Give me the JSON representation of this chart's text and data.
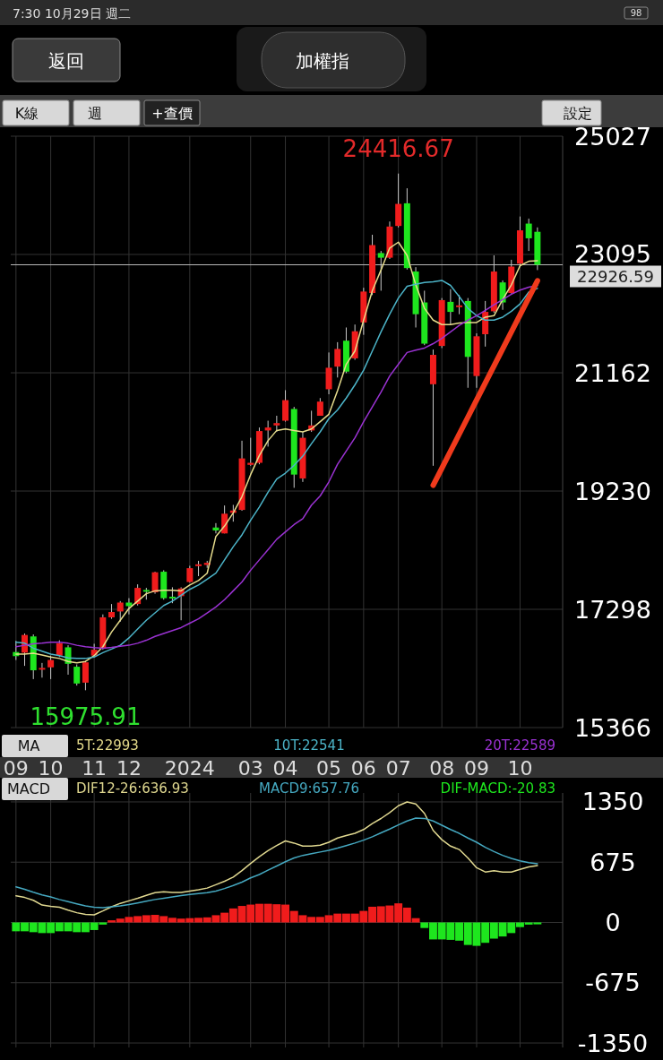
{
  "chart_data": [
    {
      "type": "other",
      "title": "加權指",
      "annotations": [
        "7:30 10月29日 週二",
        "返回",
        "K線",
        "週",
        "+查價",
        "設定",
        "98"
      ]
    },
    {
      "type": "candlestick",
      "categories": [
        "09",
        null,
        null,
        null,
        "10",
        null,
        null,
        null,
        null,
        "11",
        null,
        null,
        null,
        "12",
        null,
        null,
        null,
        null,
        null,
        null,
        "2024",
        null,
        null,
        null,
        null,
        null,
        null,
        "03",
        null,
        null,
        null,
        "04",
        null,
        null,
        null,
        null,
        "05",
        null,
        null,
        null,
        "06",
        null,
        null,
        null,
        "07",
        null,
        null,
        null,
        null,
        "08",
        null,
        null,
        null,
        "09",
        null,
        null,
        null,
        null,
        "10",
        null,
        null
      ],
      "ohlc": [
        [
          16600,
          16783,
          16470,
          16533
        ],
        [
          16590,
          16903,
          16374,
          16879
        ],
        [
          16855,
          16888,
          16158,
          16302
        ],
        [
          16312,
          16422,
          16182,
          16340
        ],
        [
          16350,
          16542,
          16158,
          16470
        ],
        [
          16542,
          16792,
          16518,
          16744
        ],
        [
          16677,
          16711,
          16230,
          16408
        ],
        [
          16360,
          16398,
          16052,
          16086
        ],
        [
          16100,
          16456,
          15975.91,
          16432
        ],
        [
          16542,
          16735,
          16518,
          16638
        ],
        [
          16662,
          17215,
          16638,
          17167
        ],
        [
          17167,
          17384,
          17143,
          17254
        ],
        [
          17263,
          17432,
          17095,
          17408
        ],
        [
          17408,
          17480,
          17215,
          17350
        ],
        [
          17384,
          17706,
          17360,
          17648
        ],
        [
          17614,
          17648,
          17456,
          17585
        ],
        [
          17576,
          17912,
          17552,
          17903
        ],
        [
          17912,
          17936,
          17456,
          17480
        ],
        [
          17504,
          17658,
          17398,
          17475
        ],
        [
          17513,
          17658,
          17119,
          17638
        ],
        [
          17744,
          18009,
          17735,
          17970
        ],
        [
          18004,
          18090,
          17840,
          18033
        ],
        [
          18023,
          18090,
          17975,
          18057
        ],
        [
          18634,
          18706,
          18538,
          18586
        ],
        [
          18538,
          18994,
          18538,
          18860
        ],
        [
          18874,
          19004,
          18730,
          18912
        ],
        [
          18922,
          20052,
          18908,
          19763
        ],
        [
          19658,
          20100,
          19643,
          19691
        ],
        [
          19691,
          20268,
          19667,
          20210
        ],
        [
          20220,
          20379,
          19956,
          20268
        ],
        [
          20302,
          20460,
          20196,
          20340
        ],
        [
          20379,
          20878,
          20364,
          20715
        ],
        [
          20571,
          20605,
          19283,
          19499
        ],
        [
          19436,
          20196,
          19379,
          20100
        ],
        [
          20220,
          20542,
          20196,
          20302
        ],
        [
          20460,
          20749,
          20460,
          20691
        ],
        [
          20893,
          21494,
          20811,
          21244
        ],
        [
          21263,
          21662,
          21085,
          21551
        ],
        [
          21686,
          21902,
          21157,
          21181
        ],
        [
          21398,
          21950,
          21374,
          21840
        ],
        [
          21984,
          22551,
          21782,
          22489
        ],
        [
          22465,
          23417,
          22431,
          23248
        ],
        [
          23118,
          23152,
          22503,
          23042
        ],
        [
          23042,
          23633,
          23022,
          23551
        ],
        [
          23561,
          24416.67,
          23537,
          23921
        ],
        [
          23931,
          24176,
          22849,
          22873
        ],
        [
          22816,
          22888,
          21902,
          22119
        ],
        [
          22311,
          22503,
          21614,
          21638
        ],
        [
          20975,
          21542,
          19643,
          21455
        ],
        [
          21600,
          22383,
          21566,
          22349
        ],
        [
          22321,
          22527,
          21950,
          22157
        ],
        [
          22234,
          22431,
          22119,
          22263
        ],
        [
          22335,
          22383,
          20917,
          21422
        ],
        [
          21109,
          21806,
          20917,
          21758
        ],
        [
          21792,
          22335,
          21590,
          22157
        ],
        [
          22167,
          23080,
          22143,
          22816
        ],
        [
          22638,
          22671,
          22191,
          22311
        ],
        [
          22465,
          23008,
          22455,
          22897
        ],
        [
          22945,
          23715,
          22888,
          23489
        ],
        [
          23599,
          23681,
          23152,
          23359
        ],
        [
          23465,
          23537,
          22840,
          22926.59
        ]
      ],
      "colors": [
        "#1ee61e",
        "#f01c1c",
        "#1ee61e",
        "#f01c1c",
        "#f01c1c",
        "#f01c1c",
        "#1ee61e",
        "#1ee61e",
        "#f01c1c",
        "#f01c1c",
        "#f01c1c",
        "#f01c1c",
        "#f01c1c",
        "#1ee61e",
        "#f01c1c",
        "#1ee61e",
        "#f01c1c",
        "#1ee61e",
        "#1ee61e",
        "#f01c1c",
        "#f01c1c",
        "#f01c1c",
        "#f01c1c",
        "#1ee61e",
        "#f01c1c",
        "#f01c1c",
        "#f01c1c",
        "#f01c1c",
        "#f01c1c",
        "#f01c1c",
        "#f01c1c",
        "#f01c1c",
        "#1ee61e",
        "#f01c1c",
        "#f01c1c",
        "#f01c1c",
        "#f01c1c",
        "#f01c1c",
        "#1ee61e",
        "#f01c1c",
        "#f01c1c",
        "#f01c1c",
        "#1ee61e",
        "#f01c1c",
        "#f01c1c",
        "#1ee61e",
        "#1ee61e",
        "#1ee61e",
        "#f01c1c",
        "#f01c1c",
        "#1ee61e",
        "#f01c1c",
        "#1ee61e",
        "#f01c1c",
        "#f01c1c",
        "#f01c1c",
        "#1ee61e",
        "#f01c1c",
        "#f01c1c",
        "#1ee61e",
        "#1ee61e"
      ],
      "series": [
        {
          "name": "5T:22993",
          "type": "line",
          "color": "#e6dc8c",
          "values": [
            16567,
            16567,
            16580,
            16552,
            16518,
            16495,
            16446,
            16422,
            16446,
            16542,
            16687,
            16927,
            17119,
            17312,
            17432,
            17552,
            17600,
            17610,
            17610,
            17600,
            17696,
            17768,
            17888,
            18489,
            18658,
            18874,
            19138,
            19499,
            19811,
            20052,
            20220,
            20244,
            20220,
            20196,
            20244,
            20364,
            20484,
            20869,
            21301,
            21518,
            22022,
            22503,
            22840,
            23200,
            23296,
            23080,
            22599,
            22215,
            22022,
            21950,
            21950,
            21974,
            21984,
            21984,
            22071,
            22095,
            22359,
            22599,
            22912,
            22984,
            22993
          ]
        },
        {
          "name": "10T:22541",
          "type": "line",
          "color": "#4cb4c8",
          "values": [
            16759,
            16744,
            16662,
            16614,
            16567,
            16542,
            16504,
            16495,
            16495,
            16518,
            16590,
            16648,
            16711,
            16831,
            16975,
            17119,
            17239,
            17360,
            17432,
            17528,
            17624,
            17696,
            17792,
            17889,
            18105,
            18321,
            18514,
            18754,
            18970,
            19210,
            19427,
            19523,
            19650,
            19800,
            20004,
            20196,
            20412,
            20556,
            20749,
            20965,
            21205,
            21518,
            21830,
            22119,
            22383,
            22575,
            22609,
            22638,
            22648,
            22671,
            22590,
            22407,
            22215,
            22095,
            22022,
            22022,
            22071,
            22167,
            22287,
            22480,
            22541
          ]
        },
        {
          "name": "20T:22589",
          "type": "line",
          "color": "#9a32d2",
          "values": [
            16687,
            16711,
            16735,
            16744,
            16759,
            16759,
            16744,
            16711,
            16687,
            16672,
            16662,
            16677,
            16696,
            16711,
            16744,
            16792,
            16855,
            16903,
            16951,
            16999,
            17071,
            17143,
            17239,
            17336,
            17456,
            17600,
            17744,
            17937,
            18105,
            18273,
            18442,
            18562,
            18682,
            18778,
            19000,
            19150,
            19380,
            19667,
            19883,
            20100,
            20364,
            20604,
            20845,
            21109,
            21301,
            21494,
            21532,
            21566,
            21638,
            21724,
            21830,
            21936,
            22022,
            22095,
            22181,
            22273,
            22359,
            22445,
            22513,
            22561,
            22589
          ]
        },
        {
          "type": "line",
          "color": "#f03a1c",
          "values": [
            null,
            null,
            null,
            null,
            null,
            null,
            null,
            null,
            null,
            null,
            null,
            null,
            null,
            null,
            null,
            null,
            null,
            null,
            null,
            null,
            null,
            null,
            null,
            null,
            null,
            null,
            null,
            null,
            null,
            null,
            null,
            null,
            null,
            null,
            null,
            null,
            null,
            null,
            null,
            null,
            null,
            null,
            null,
            null,
            null,
            null,
            null,
            null,
            19325,
            19603,
            19882,
            20160,
            20438,
            20717,
            20995,
            21274,
            21552,
            21830,
            22109,
            22387,
            22666
          ]
        }
      ],
      "ylim": [
        15366,
        25027
      ],
      "yticks": [
        15366,
        17298,
        19230,
        21162,
        23095,
        25027
      ],
      "grid": true,
      "legend": "bottom",
      "legend_title": "MA",
      "ref_lines": [
        {
          "axis": "y",
          "value": 22926.59,
          "label": "22926.59",
          "color": "#bbbbbb"
        }
      ],
      "annotations": [
        {
          "text": "24416.67",
          "y": 24416.67
        },
        {
          "text": "15975.91",
          "y": 15975.91
        }
      ]
    },
    {
      "type": "bar",
      "categories": [
        "09",
        null,
        null,
        null,
        "10",
        null,
        null,
        null,
        null,
        "11",
        null,
        null,
        null,
        "12",
        null,
        null,
        null,
        null,
        null,
        null,
        "2024",
        null,
        null,
        null,
        null,
        null,
        null,
        "03",
        null,
        null,
        null,
        "04",
        null,
        null,
        null,
        null,
        "05",
        null,
        null,
        null,
        "06",
        null,
        null,
        null,
        "07",
        null,
        null,
        null,
        null,
        "08",
        null,
        null,
        null,
        "09",
        null,
        null,
        null,
        null,
        "10",
        null,
        null
      ],
      "series": [
        {
          "name": "DIF12-26:636.93",
          "type": "line",
          "color": "#e0d890",
          "values": [
            299,
            280,
            248,
            195,
            181,
            171,
            138,
            109,
            91,
            85,
            129,
            176,
            214,
            242,
            271,
            304,
            333,
            343,
            337,
            337,
            351,
            366,
            385,
            423,
            461,
            508,
            580,
            661,
            737,
            803,
            861,
            913,
            889,
            855,
            855,
            865,
            898,
            946,
            974,
            998,
            1041,
            1107,
            1164,
            1231,
            1307,
            1350,
            1327,
            1222,
            1031,
            927,
            855,
            817,
            722,
            613,
            565,
            580,
            565,
            565,
            595,
            623,
            636.93
          ]
        },
        {
          "name": "MACD9:657.76",
          "type": "line",
          "color": "#45a8c0",
          "values": [
            399,
            371,
            338,
            309,
            285,
            257,
            233,
            209,
            185,
            171,
            166,
            176,
            185,
            200,
            219,
            238,
            257,
            271,
            285,
            300,
            314,
            323,
            333,
            352,
            380,
            414,
            452,
            499,
            537,
            585,
            632,
            680,
            723,
            751,
            770,
            789,
            808,
            832,
            860,
            889,
            922,
            960,
            1003,
            1046,
            1093,
            1136,
            1169,
            1165,
            1136,
            1089,
            1041,
            998,
            946,
            898,
            841,
            794,
            751,
            718,
            689,
            670,
            657.76
          ]
        },
        {
          "name": "DIF-MACD:-20.83",
          "type": "bar",
          "colors": [
            "#1ee61e",
            "#1ee61e",
            "#1ee61e",
            "#1ee61e",
            "#1ee61e",
            "#1ee61e",
            "#1ee61e",
            "#1ee61e",
            "#1ee61e",
            "#1ee61e",
            "#1ee61e",
            "#f01c1c",
            "#f01c1c",
            "#f01c1c",
            "#f01c1c",
            "#f01c1c",
            "#f01c1c",
            "#f01c1c",
            "#f01c1c",
            "#f01c1c",
            "#f01c1c",
            "#f01c1c",
            "#f01c1c",
            "#f01c1c",
            "#f01c1c",
            "#f01c1c",
            "#f01c1c",
            "#f01c1c",
            "#f01c1c",
            "#f01c1c",
            "#f01c1c",
            "#f01c1c",
            "#f01c1c",
            "#f01c1c",
            "#f01c1c",
            "#f01c1c",
            "#f01c1c",
            "#f01c1c",
            "#f01c1c",
            "#f01c1c",
            "#f01c1c",
            "#f01c1c",
            "#f01c1c",
            "#f01c1c",
            "#f01c1c",
            "#f01c1c",
            "#f01c1c",
            "#1ee61e",
            "#1ee61e",
            "#1ee61e",
            "#1ee61e",
            "#1ee61e",
            "#1ee61e",
            "#1ee61e",
            "#1ee61e",
            "#1ee61e",
            "#1ee61e",
            "#1ee61e",
            "#1ee61e",
            "#1ee61e",
            "#1ee61e"
          ],
          "values": [
            -99,
            -99,
            -109,
            -119,
            -119,
            -99,
            -99,
            -109,
            -109,
            -85,
            -24,
            24,
            43,
            62,
            71,
            81,
            85,
            71,
            52,
            43,
            48,
            52,
            57,
            81,
            109,
            157,
            185,
            200,
            209,
            209,
            204,
            200,
            129,
            81,
            62,
            62,
            81,
            99,
            99,
            99,
            129,
            176,
            181,
            190,
            214,
            166,
            48,
            -62,
            -190,
            -190,
            -195,
            -204,
            -252,
            -262,
            -228,
            -181,
            -157,
            -119,
            -52,
            -24,
            -20.83
          ]
        }
      ],
      "ylim": [
        -1400,
        1450
      ],
      "yticks": [
        1350,
        675,
        0,
        -675,
        -1350
      ],
      "grid": true,
      "legend": "top",
      "legend_title": "MACD",
      "tick_labels": "y"
    }
  ]
}
